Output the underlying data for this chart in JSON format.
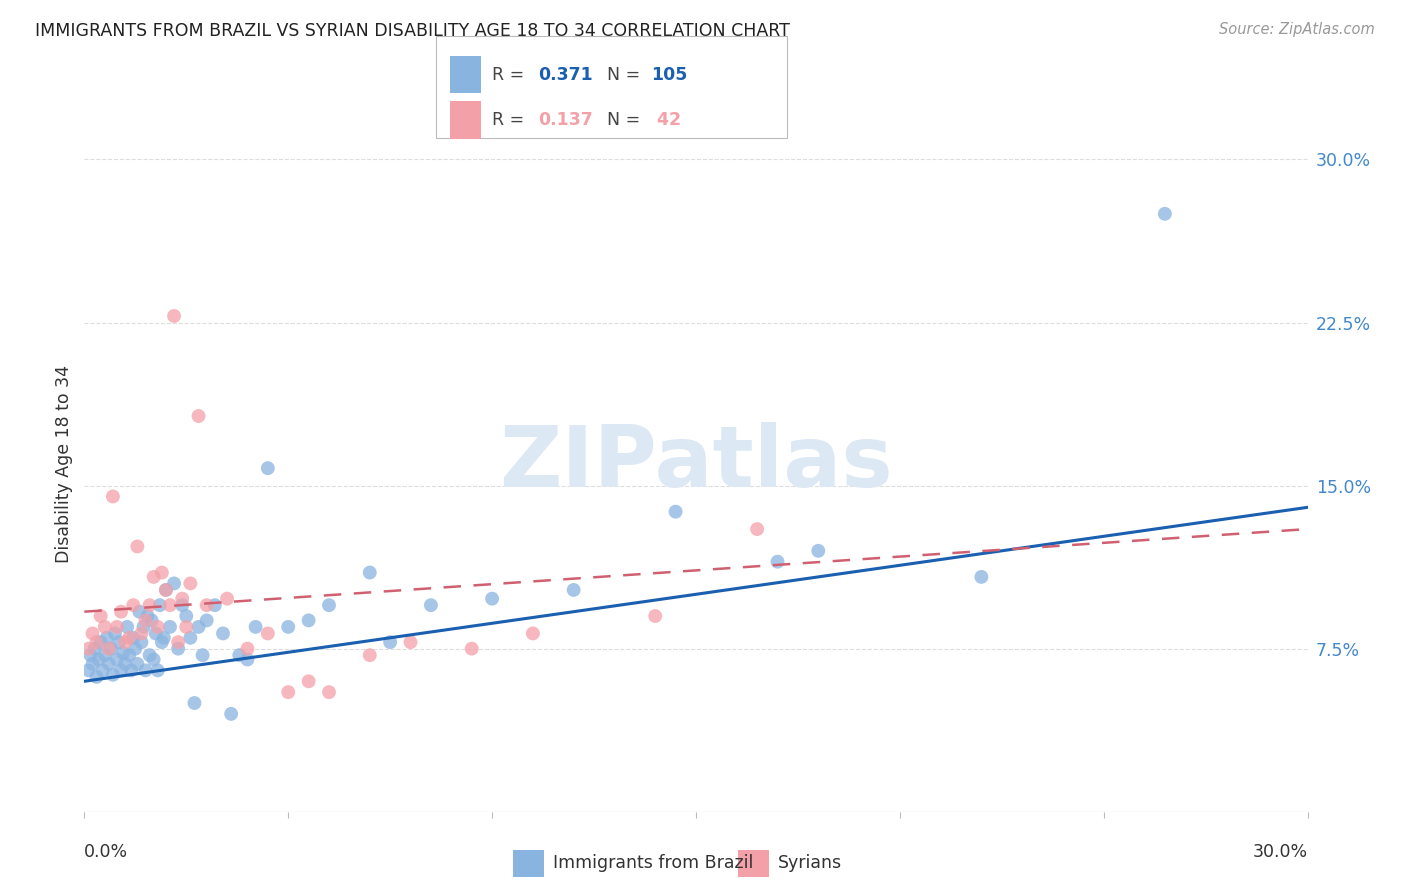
{
  "title": "IMMIGRANTS FROM BRAZIL VS SYRIAN DISABILITY AGE 18 TO 34 CORRELATION CHART",
  "source": "Source: ZipAtlas.com",
  "ylabel": "Disability Age 18 to 34",
  "legend_brazil": "Immigrants from Brazil",
  "legend_syrians": "Syrians",
  "brazil_color": "#8ab4e0",
  "syrian_color": "#f4a0a8",
  "brazil_line_color": "#1a5fb0",
  "syrian_line_color": "#d06070",
  "watermark_color": "#dde8f5",
  "brazil_line_y0": 6.0,
  "brazil_line_y1": 14.0,
  "syrian_line_y0": 9.2,
  "syrian_line_y1": 13.0,
  "xlim": [
    0,
    30
  ],
  "ylim": [
    0,
    32
  ],
  "ytick_vals": [
    7.5,
    15.0,
    22.5,
    30.0
  ],
  "ytick_labels": [
    "7.5%",
    "15.0%",
    "22.5%",
    "30.0%"
  ],
  "brazil_scatter_x": [
    0.1,
    0.15,
    0.2,
    0.25,
    0.3,
    0.35,
    0.4,
    0.45,
    0.5,
    0.55,
    0.6,
    0.65,
    0.7,
    0.75,
    0.8,
    0.85,
    0.9,
    0.95,
    1.0,
    1.05,
    1.1,
    1.15,
    1.2,
    1.25,
    1.3,
    1.35,
    1.4,
    1.45,
    1.5,
    1.55,
    1.6,
    1.65,
    1.7,
    1.75,
    1.8,
    1.85,
    1.9,
    1.95,
    2.0,
    2.1,
    2.2,
    2.3,
    2.4,
    2.5,
    2.6,
    2.7,
    2.8,
    2.9,
    3.0,
    3.2,
    3.4,
    3.6,
    3.8,
    4.0,
    4.2,
    4.5,
    5.0,
    5.5,
    6.0,
    7.0,
    7.5,
    8.5,
    10.0,
    12.0,
    14.5,
    17.0,
    18.0,
    22.0,
    26.5
  ],
  "brazil_scatter_y": [
    6.5,
    7.2,
    6.8,
    7.5,
    6.2,
    7.0,
    7.8,
    6.5,
    7.2,
    8.0,
    6.8,
    7.5,
    6.3,
    8.2,
    7.0,
    7.8,
    6.5,
    7.3,
    6.8,
    8.5,
    7.2,
    6.5,
    8.0,
    7.5,
    6.8,
    9.2,
    7.8,
    8.5,
    6.5,
    9.0,
    7.2,
    8.8,
    7.0,
    8.2,
    6.5,
    9.5,
    7.8,
    8.0,
    10.2,
    8.5,
    10.5,
    7.5,
    9.5,
    9.0,
    8.0,
    5.0,
    8.5,
    7.2,
    8.8,
    9.5,
    8.2,
    4.5,
    7.2,
    7.0,
    8.5,
    15.8,
    8.5,
    8.8,
    9.5,
    11.0,
    7.8,
    9.5,
    9.8,
    10.2,
    13.8,
    11.5,
    12.0,
    10.8,
    27.5
  ],
  "syrian_scatter_x": [
    0.1,
    0.2,
    0.3,
    0.4,
    0.5,
    0.6,
    0.7,
    0.8,
    0.9,
    1.0,
    1.1,
    1.2,
    1.3,
    1.4,
    1.5,
    1.6,
    1.7,
    1.8,
    1.9,
    2.0,
    2.1,
    2.2,
    2.3,
    2.4,
    2.5,
    2.6,
    2.8,
    3.0,
    3.5,
    4.0,
    4.5,
    5.0,
    5.5,
    6.0,
    7.0,
    8.0,
    9.5,
    11.0,
    14.0,
    16.5
  ],
  "syrian_scatter_y": [
    7.5,
    8.2,
    7.8,
    9.0,
    8.5,
    7.5,
    14.5,
    8.5,
    9.2,
    7.8,
    8.0,
    9.5,
    12.2,
    8.2,
    8.8,
    9.5,
    10.8,
    8.5,
    11.0,
    10.2,
    9.5,
    22.8,
    7.8,
    9.8,
    8.5,
    10.5,
    18.2,
    9.5,
    9.8,
    7.5,
    8.2,
    5.5,
    6.0,
    5.5,
    7.2,
    7.8,
    7.5,
    8.2,
    9.0,
    13.0
  ]
}
